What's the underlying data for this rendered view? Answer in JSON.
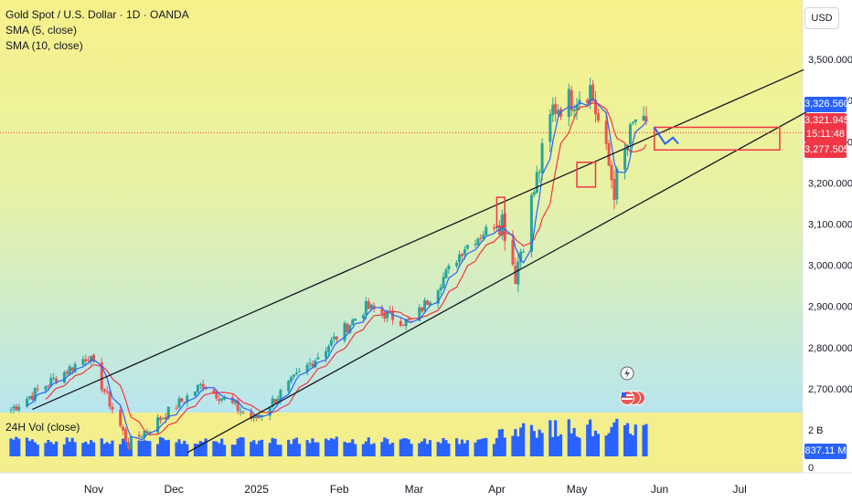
{
  "legend": {
    "symbol": "Gold Spot / U.S. Dollar · 1D · OANDA",
    "sma5": "SMA (5, close)",
    "sma10": "SMA (10, close)"
  },
  "currency_button": "USD",
  "volume": {
    "label": "24H Vol (close)",
    "current": "837.11 M",
    "axis_ticks": [
      "2 B",
      "0"
    ]
  },
  "price_tags": {
    "high": "3,326.560",
    "last": "3,321.945",
    "countdown": "15:11:48",
    "low": "3,277.505"
  },
  "colors": {
    "up": "#26a69a",
    "down": "#ef5350",
    "sma5": "#2962ff",
    "sma10": "#f23645",
    "volume": "#2962ff",
    "bg_top": "#f7f18a",
    "bg_bottom": "#b8e6ee"
  },
  "chart_data": {
    "type": "candlestick",
    "title": "Gold Spot / U.S. Dollar · 1D · OANDA",
    "x_ticks": [
      "Nov",
      "Dec",
      "2025",
      "Feb",
      "Mar",
      "Apr",
      "May",
      "Jun",
      "Jul"
    ],
    "y_ticks": [
      "3,500.000",
      "3,400.000",
      "3,300.000",
      "3,200.000",
      "3,100.000",
      "3,000.000",
      "2,900.000",
      "2,800.000",
      "2,700.000"
    ],
    "y_values": [
      3500,
      3400,
      3300,
      3200,
      3100,
      3000,
      2900,
      2800,
      2700
    ],
    "ylim": [
      2645,
      3600
    ],
    "key_points": [
      {
        "date": "2024-10-30",
        "close": 2781
      },
      {
        "date": "2024-11-14",
        "close": 2565
      },
      {
        "date": "2024-12-12",
        "close": 2712
      },
      {
        "date": "2024-12-31",
        "close": 2624
      },
      {
        "date": "2025-02-11",
        "close": 2898
      },
      {
        "date": "2025-02-28",
        "close": 2858
      },
      {
        "date": "2025-03-20",
        "close": 3045
      },
      {
        "date": "2025-04-03",
        "close": 3114
      },
      {
        "date": "2025-04-08",
        "close": 2982
      },
      {
        "date": "2025-04-22",
        "close": 3380
      },
      {
        "date": "2025-05-06",
        "close": 3430
      },
      {
        "date": "2025-05-15",
        "close": 3185
      },
      {
        "date": "2025-05-23",
        "close": 3357
      },
      {
        "date": "2025-05-27",
        "close": 3322
      }
    ],
    "series": [
      {
        "name": "SMA (5, close)"
      },
      {
        "name": "SMA (10, close)"
      }
    ],
    "trendlines": [
      {
        "from": {
          "date": "2024-10-09",
          "price": 2650
        },
        "to": {
          "date": "2025-07-25",
          "price": 3475
        }
      },
      {
        "from": {
          "date": "2024-12-06",
          "price": 2545
        },
        "to": {
          "date": "2025-07-31",
          "price": 3390
        }
      }
    ],
    "zones": [
      {
        "from": {
          "date": "2025-04-01",
          "price": 3165
        },
        "to": {
          "date": "2025-04-04",
          "price": 3095
        }
      },
      {
        "from": {
          "date": "2025-05-01",
          "price": 3250
        },
        "to": {
          "date": "2025-05-08",
          "price": 3190
        }
      },
      {
        "from": {
          "date": "2025-05-30",
          "price": 3335
        },
        "to": {
          "date": "2025-07-16",
          "price": 3280
        }
      }
    ],
    "projection": [
      {
        "date": "2025-05-30",
        "price": 3335
      },
      {
        "date": "2025-06-03",
        "price": 3295
      },
      {
        "date": "2025-06-06",
        "price": 3310
      },
      {
        "date": "2025-06-08",
        "price": 3295
      }
    ],
    "volume_axis": [
      "2 B",
      "0"
    ],
    "volume_last": 837.11
  }
}
